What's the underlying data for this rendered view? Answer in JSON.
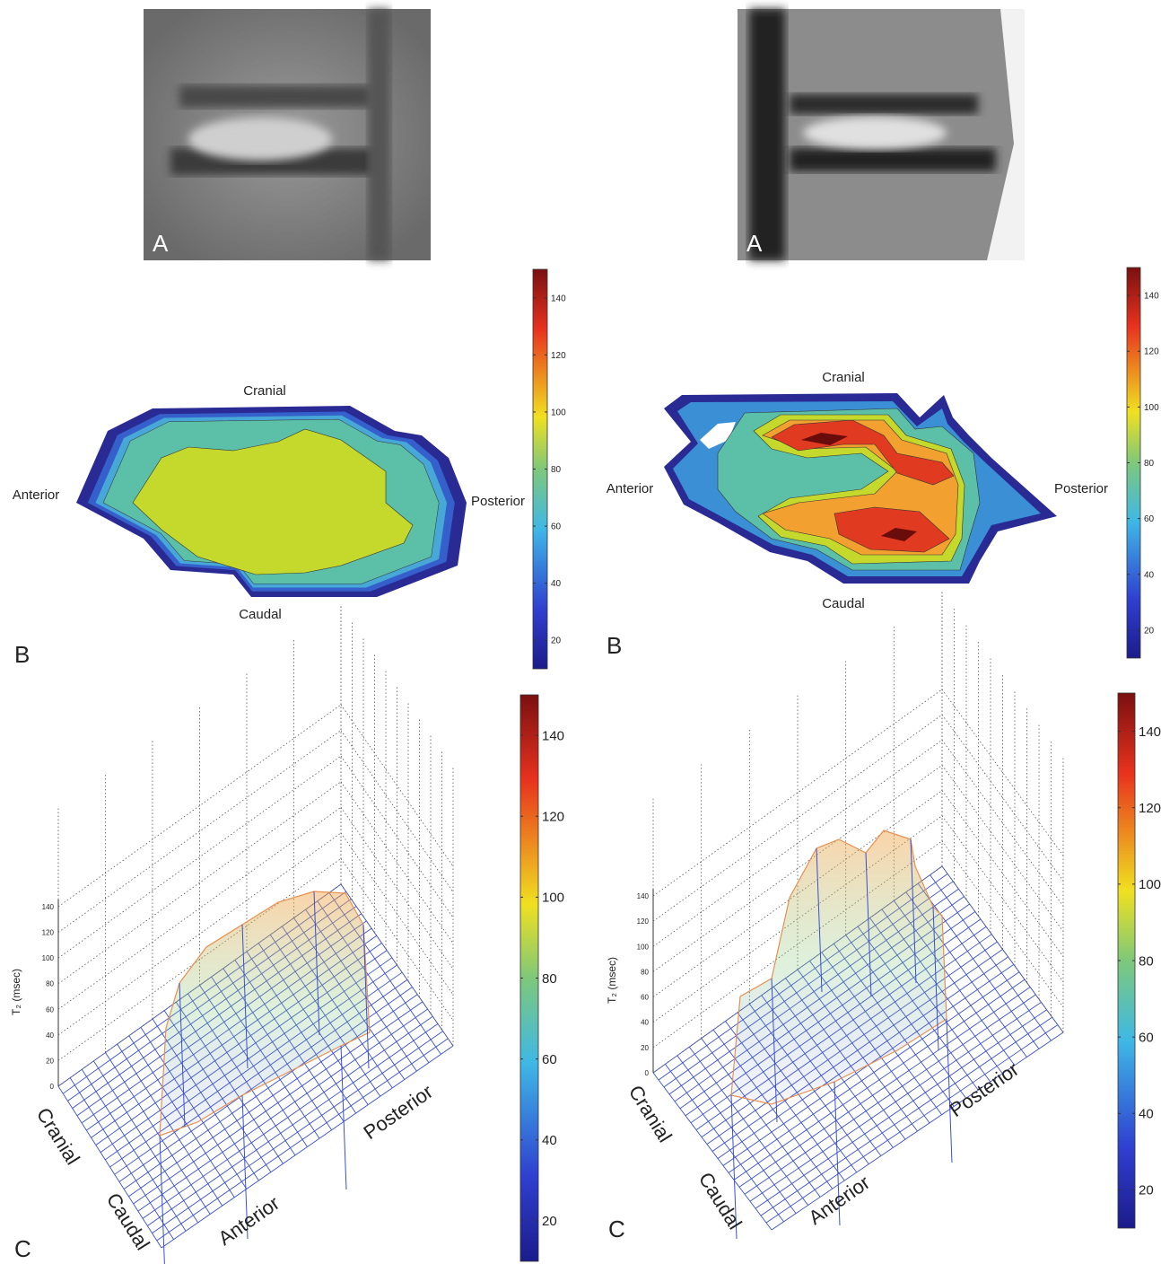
{
  "left": {
    "a_label": "A",
    "b_label": "B",
    "b_orientation": {
      "cranial": "Cranial",
      "caudal": "Caudal",
      "anterior": "Anterior",
      "posterior": "Posterior"
    },
    "b_colorbar": {
      "range": [
        10,
        150
      ],
      "ticks": [
        20,
        40,
        60,
        80,
        100,
        120,
        140
      ]
    },
    "c_label": "C",
    "c_zaxis": {
      "label": "T₂ (msec)",
      "range": [
        0,
        140
      ],
      "ticks": [
        0,
        20,
        40,
        60,
        80,
        100,
        120,
        140
      ]
    },
    "c_orientation": {
      "cranial": "Cranial",
      "caudal": "Caudal",
      "anterior": "Anterior",
      "posterior": "Posterior"
    },
    "c_colorbar": {
      "range": [
        10,
        150
      ],
      "ticks": [
        20,
        40,
        60,
        80,
        100,
        120,
        140
      ]
    }
  },
  "right": {
    "a_label": "A",
    "b_label": "B",
    "b_orientation": {
      "cranial": "Cranial",
      "caudal": "Caudal",
      "anterior": "Anterior",
      "posterior": "Posterior"
    },
    "b_colorbar": {
      "range": [
        10,
        150
      ],
      "ticks": [
        20,
        40,
        60,
        80,
        100,
        120,
        140
      ]
    },
    "c_label": "C",
    "c_zaxis": {
      "label": "T₂ (msec)",
      "range": [
        0,
        140
      ],
      "ticks": [
        0,
        20,
        40,
        60,
        80,
        100,
        120,
        140
      ]
    },
    "c_orientation": {
      "cranial": "Cranial",
      "caudal": "Caudal",
      "anterior": "Anterior",
      "posterior": "Posterior"
    },
    "c_colorbar": {
      "range": [
        10,
        150
      ],
      "ticks": [
        20,
        40,
        60,
        80,
        100,
        120,
        140
      ]
    }
  }
}
